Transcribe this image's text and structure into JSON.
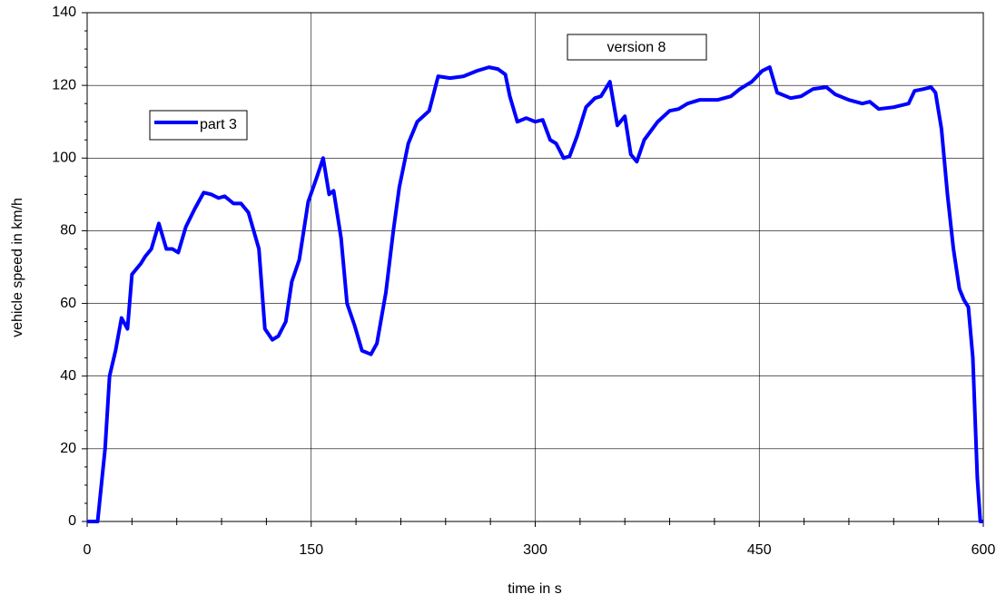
{
  "chart_data": {
    "type": "line",
    "xlabel": "time in s",
    "ylabel": "vehicle speed in km/h",
    "annotations": [
      "version 8"
    ],
    "xlim": [
      0,
      600
    ],
    "xticks": [
      0,
      150,
      300,
      450,
      600
    ],
    "xminorticks": [
      30,
      60,
      90,
      120,
      180,
      210,
      240,
      270,
      330,
      360,
      390,
      420,
      480,
      510,
      540,
      570
    ],
    "ylim": [
      0,
      140
    ],
    "yticks": [
      0,
      20,
      40,
      60,
      80,
      100,
      120,
      140
    ],
    "yminorticks": [
      5,
      10,
      15,
      25,
      30,
      35,
      45,
      50,
      55,
      65,
      70,
      75,
      85,
      90,
      95,
      105,
      110,
      115,
      125,
      130,
      135
    ],
    "grid": true,
    "series": [
      {
        "name": "part 3",
        "color": "#0000ff",
        "x": [
          0,
          7,
          12,
          15,
          19,
          23,
          27,
          30,
          36,
          39,
          43,
          48,
          53,
          57,
          61,
          66,
          72,
          78,
          83,
          88,
          92,
          98,
          103,
          108,
          115,
          119,
          124,
          128,
          133,
          137,
          142,
          148,
          154,
          158,
          162,
          165,
          170,
          174,
          179,
          184,
          190,
          194,
          200,
          205,
          209,
          215,
          221,
          229,
          235,
          243,
          252,
          261,
          269,
          275,
          280,
          283,
          288,
          294,
          300,
          305,
          310,
          314,
          319,
          323,
          328,
          334,
          340,
          344,
          350,
          355,
          360,
          364,
          368,
          373,
          382,
          390,
          396,
          402,
          410,
          422,
          431,
          437,
          445,
          452,
          457,
          462,
          471,
          478,
          486,
          495,
          501,
          510,
          519,
          524,
          530,
          540,
          550,
          554,
          560,
          565,
          568,
          572,
          576,
          580,
          584,
          587,
          590,
          593,
          596,
          598,
          600
        ],
        "values": [
          0,
          0,
          20,
          40,
          47,
          56,
          53,
          68,
          71,
          73,
          75,
          82,
          75,
          75,
          74,
          81,
          86,
          90.5,
          90,
          89,
          89.5,
          87.5,
          87.5,
          85,
          75,
          53,
          50,
          51,
          55,
          66,
          72,
          88,
          95,
          100,
          90,
          91,
          78,
          60,
          54,
          47,
          46,
          49,
          63,
          80,
          92,
          104,
          110,
          113,
          122.5,
          122,
          122.5,
          124,
          125,
          124.5,
          123,
          117,
          110,
          111,
          110,
          110.5,
          105,
          104,
          100,
          100.5,
          106,
          114,
          116.5,
          117,
          121,
          109,
          111.5,
          101,
          99,
          105,
          110,
          113,
          113.5,
          115,
          116,
          116,
          117,
          119,
          121,
          124,
          125,
          118,
          116.5,
          117,
          119,
          119.5,
          117.5,
          116,
          115,
          115.5,
          113.5,
          114,
          115,
          118.5,
          119,
          119.5,
          118,
          108,
          90,
          75,
          64,
          61,
          59,
          45,
          12,
          0,
          0
        ]
      }
    ]
  }
}
